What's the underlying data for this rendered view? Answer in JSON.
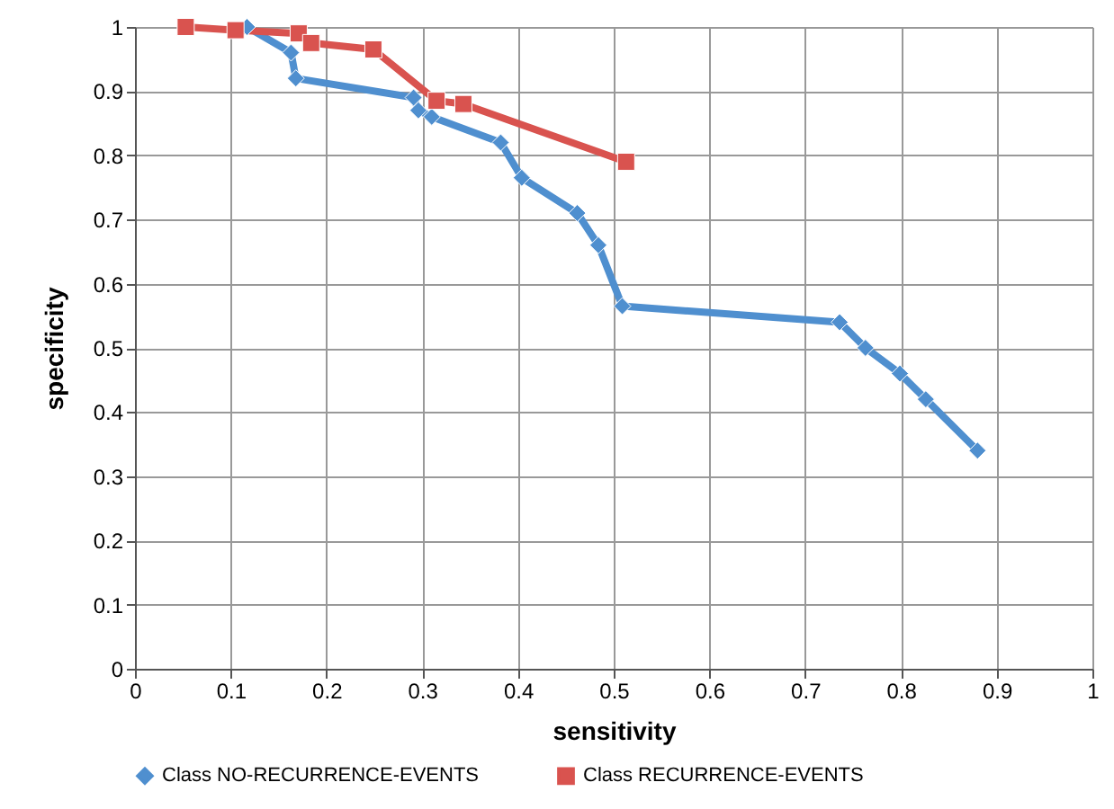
{
  "chart_data": {
    "type": "line",
    "xlabel": "sensitivity",
    "ylabel": "specificity",
    "xlim": [
      0,
      1
    ],
    "ylim": [
      0,
      1
    ],
    "xticks": [
      0,
      0.1,
      0.2,
      0.3,
      0.4,
      0.5,
      0.6,
      0.7,
      0.8,
      0.9,
      1
    ],
    "yticks": [
      0,
      0.1,
      0.2,
      0.3,
      0.4,
      0.5,
      0.6,
      0.7,
      0.8,
      0.9,
      1
    ],
    "grid": true,
    "legend": "bottom",
    "line_style": "solid",
    "series": [
      {
        "name": "Class NO-RECURRENCE-EVENTS",
        "color": "#4f8fcf",
        "marker": "diamond",
        "x": [
          0.117,
          0.163,
          0.168,
          0.291,
          0.296,
          0.31,
          0.382,
          0.404,
          0.462,
          0.484,
          0.509,
          0.736,
          0.763,
          0.799,
          0.826,
          0.88
        ],
        "values": [
          1.0,
          0.96,
          0.92,
          0.89,
          0.87,
          0.86,
          0.82,
          0.765,
          0.71,
          0.66,
          0.565,
          0.54,
          0.5,
          0.46,
          0.42,
          0.34
        ]
      },
      {
        "name": "Class RECURRENCE-EVENTS",
        "color": "#d9534f",
        "marker": "square",
        "x": [
          0.053,
          0.105,
          0.171,
          0.184,
          0.249,
          0.315,
          0.343,
          0.513
        ],
        "values": [
          1.0,
          0.995,
          0.99,
          0.975,
          0.965,
          0.885,
          0.88,
          0.79
        ]
      }
    ]
  }
}
